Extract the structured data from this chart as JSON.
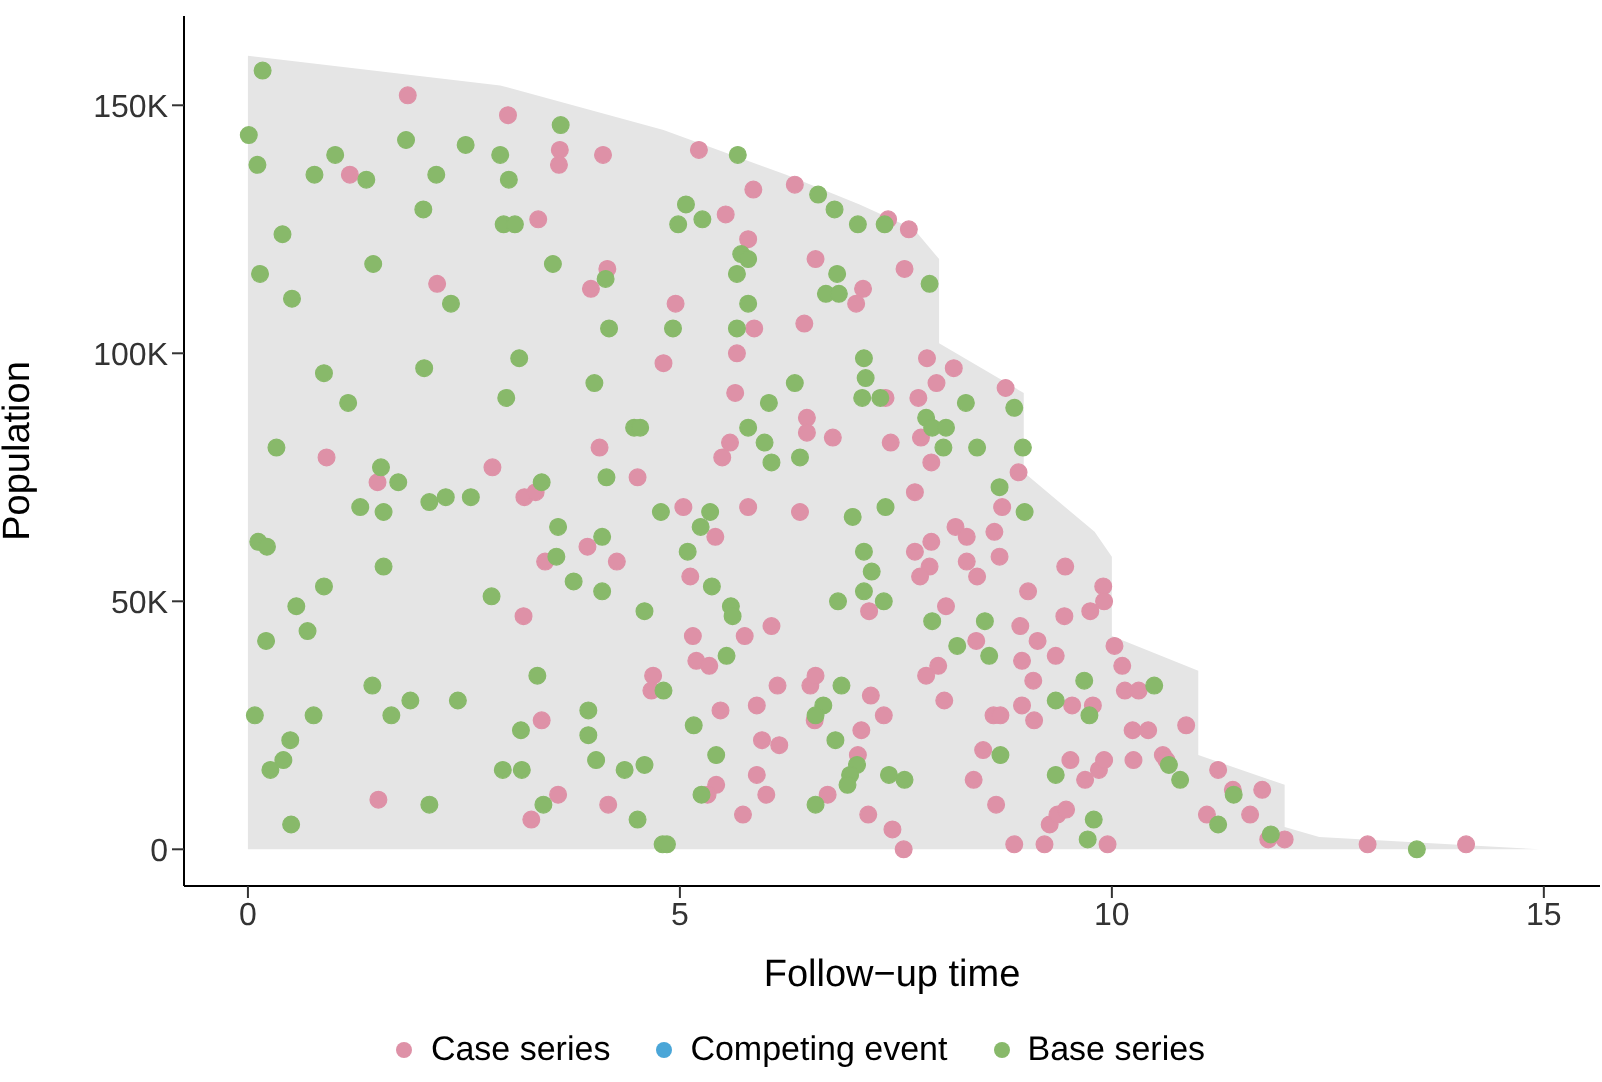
{
  "chart_data": {
    "type": "scatter",
    "xlabel": "Follow−up time",
    "ylabel": "Population",
    "xlim": [
      -0.74,
      15.65
    ],
    "ylim": [
      -7400,
      168000
    ],
    "xticks": [
      0,
      5,
      10,
      15
    ],
    "yticks": [
      0,
      {
        "value": 50000,
        "label": "50K"
      },
      {
        "value": 100000,
        "label": "100K"
      },
      {
        "value": 150000,
        "label": "150K"
      }
    ],
    "grid": false,
    "legend": "bottom",
    "marker": "circle",
    "series": [
      {
        "type": "area",
        "marker": "none",
        "color": "#e5e5e5",
        "x": [
          0,
          2.92,
          4.81,
          6.23,
          7.08,
          7.71,
          8.0,
          8.0,
          8.98,
          8.98,
          9.8,
          10.0,
          10.0,
          11.0,
          11.0,
          12.0,
          12.0,
          12.4,
          14.95
        ],
        "values": [
          160000,
          154000,
          145000,
          136000,
          130000,
          125000,
          119000,
          102000,
          92000,
          76000,
          64000,
          59000,
          43000,
          36000,
          19000,
          13000,
          4500,
          2500,
          0
        ]
      },
      {
        "name": "Case series",
        "color": "#de91a7",
        "x": [
          1.85,
          3.01,
          3.61,
          4.11,
          1.18,
          3.6,
          3.36,
          4.16,
          3.97,
          2.19,
          4.81,
          4.07,
          0.91,
          5.22,
          5.85,
          6.33,
          5.53,
          7.41,
          7.65,
          5.79,
          6.57,
          7.6,
          7.12,
          7.04,
          4.95,
          5.86,
          6.44,
          5.66,
          7.86,
          8.17,
          7.97,
          5.64,
          7.38,
          7.76,
          8.77,
          7.79,
          6.47,
          6.47,
          6.77,
          5.58,
          7.44,
          5.49,
          7.91,
          1.5,
          2.83,
          4.51,
          3.2,
          3.33,
          3.93,
          4.27,
          3.44,
          3.19,
          4.69,
          4.67,
          3.4,
          1.51,
          3.59,
          4.17,
          3.28,
          8.92,
          7.72,
          8.73,
          5.04,
          5.41,
          5.79,
          6.39,
          5.12,
          6.06,
          5.75,
          5.15,
          5.19,
          5.34,
          7.19,
          7.72,
          7.91,
          7.89,
          7.78,
          8.19,
          8.32,
          8.64,
          8.32,
          8.44,
          8.7,
          8.08,
          8.43,
          7.99,
          7.85,
          8.06,
          9.46,
          9.03,
          9.9,
          9.91,
          9.75,
          9.45,
          8.94,
          9.14,
          9.35,
          8.96,
          9.09,
          10.03,
          9.54,
          9.78,
          8.96,
          8.63,
          8.71,
          9.1,
          8.51,
          8.4,
          8.66,
          8.87,
          9.22,
          9.95,
          9.28,
          9.37,
          9.47,
          9.52,
          9.69,
          9.85,
          9.91,
          5.47,
          5.89,
          6.13,
          6.51,
          6.57,
          6.56,
          7.21,
          7.36,
          7.1,
          7.06,
          5.95,
          6.15,
          5.89,
          6.0,
          5.42,
          5.32,
          5.73,
          6.71,
          7.18,
          7.46,
          7.59,
          10.12,
          10.15,
          10.31,
          10.24,
          10.42,
          10.86,
          10.25,
          10.59,
          10.63,
          11.23,
          11.4,
          11.74,
          11.1,
          11.6,
          11.81,
          12.0,
          12.96,
          14.1
        ],
        "values": [
          152000,
          148000,
          141000,
          140000,
          136000,
          138000,
          127000,
          117000,
          113000,
          114000,
          98000,
          81000,
          79000,
          141000,
          133000,
          134000,
          128000,
          127000,
          125000,
          123000,
          119000,
          117000,
          113000,
          110000,
          110000,
          105000,
          106000,
          100000,
          99000,
          97000,
          94000,
          92000,
          91000,
          91000,
          93000,
          83000,
          87000,
          84000,
          83000,
          82000,
          82000,
          79000,
          78000,
          74000,
          77000,
          75000,
          71000,
          72000,
          61000,
          58000,
          58000,
          47000,
          35000,
          32000,
          26000,
          10000,
          11000,
          9000,
          6000,
          76000,
          72000,
          69000,
          69000,
          63000,
          69000,
          68000,
          55000,
          45000,
          43000,
          43000,
          38000,
          37000,
          48000,
          60000,
          62000,
          57000,
          55000,
          65000,
          63000,
          64000,
          58000,
          55000,
          59000,
          49000,
          42000,
          37000,
          35000,
          30000,
          57000,
          52000,
          53000,
          50000,
          48000,
          47000,
          45000,
          42000,
          39000,
          38000,
          34000,
          41000,
          29000,
          29000,
          29000,
          27000,
          27000,
          26000,
          20000,
          14000,
          9000,
          1000,
          1000,
          1000,
          5000,
          7000,
          8000,
          18000,
          14000,
          16000,
          18000,
          28000,
          29000,
          33000,
          33000,
          35000,
          26000,
          31000,
          27000,
          24000,
          19000,
          22000,
          21000,
          15000,
          11000,
          13000,
          11000,
          7000,
          11000,
          7000,
          4000,
          0,
          37000,
          32000,
          32000,
          24000,
          24000,
          25000,
          18000,
          19000,
          18000,
          16000,
          12000,
          12000,
          7000,
          7000,
          2000,
          2000,
          1000,
          1000
        ]
      },
      {
        "name": "Competing event",
        "color": "#4aa6d8"
      },
      {
        "name": "Base series",
        "color": "#88b96a",
        "x": [
          0.17,
          3.62,
          0.01,
          1.83,
          1.01,
          2.52,
          2.92,
          0.11,
          0.77,
          1.37,
          2.18,
          3.02,
          2.03,
          2.96,
          3.09,
          0.4,
          0.14,
          1.45,
          3.53,
          4.14,
          0.51,
          2.35,
          4.18,
          3.14,
          2.04,
          0.88,
          4.01,
          1.16,
          2.99,
          4.47,
          0.33,
          5.67,
          6.6,
          5.07,
          5.26,
          4.98,
          6.79,
          7.06,
          7.37,
          5.71,
          5.79,
          5.66,
          6.82,
          7.89,
          6.69,
          6.84,
          5.79,
          4.92,
          5.66,
          7.13,
          7.15,
          6.33,
          6.03,
          7.11,
          7.32,
          8.31,
          8.87,
          7.85,
          7.92,
          8.08,
          8.05,
          8.44,
          8.97,
          5.79,
          5.98,
          6.06,
          6.39,
          4.54,
          1.54,
          1.74,
          4.15,
          3.4,
          1.3,
          1.57,
          2.1,
          2.29,
          2.58,
          4.78,
          0.12,
          0.22,
          3.59,
          4.1,
          3.57,
          3.77,
          4.1,
          1.57,
          0.88,
          0.56,
          0.69,
          0.21,
          2.82,
          4.59,
          3.35,
          1.44,
          1.88,
          2.43,
          1.66,
          0.76,
          0.08,
          3.94,
          3.16,
          3.94,
          0.49,
          0.41,
          0.26,
          2.95,
          3.17,
          4.03,
          4.36,
          4.59,
          2.1,
          3.42,
          4.51,
          0.5,
          4.8,
          8.7,
          8.99,
          5.35,
          5.24,
          7.0,
          7.38,
          5.09,
          5.37,
          5.59,
          5.61,
          5.54,
          7.13,
          7.22,
          7.13,
          7.36,
          6.83,
          7.92,
          8.53,
          8.21,
          8.58,
          9.68,
          9.35,
          9.74,
          8.71,
          9.72,
          9.79,
          9.35,
          4.81,
          5.16,
          6.87,
          6.66,
          6.57,
          6.8,
          7.05,
          6.97,
          6.94,
          7.42,
          7.6,
          5.42,
          5.25,
          6.57,
          4.85,
          10.49,
          10.66,
          10.79,
          11.41,
          11.23,
          11.84,
          13.53
        ],
        "values": [
          157000,
          146000,
          144000,
          143000,
          140000,
          142000,
          140000,
          138000,
          136000,
          135000,
          136000,
          135000,
          129000,
          126000,
          126000,
          124000,
          116000,
          118000,
          118000,
          115000,
          111000,
          110000,
          105000,
          99000,
          97000,
          96000,
          94000,
          90000,
          91000,
          85000,
          81000,
          140000,
          132000,
          130000,
          127000,
          126000,
          129000,
          126000,
          126000,
          120000,
          119000,
          116000,
          116000,
          114000,
          112000,
          112000,
          110000,
          105000,
          105000,
          99000,
          95000,
          94000,
          90000,
          91000,
          91000,
          90000,
          89000,
          87000,
          85000,
          85000,
          81000,
          81000,
          81000,
          85000,
          82000,
          78000,
          79000,
          85000,
          77000,
          74000,
          75000,
          74000,
          69000,
          68000,
          70000,
          71000,
          71000,
          68000,
          62000,
          61000,
          65000,
          63000,
          59000,
          54000,
          52000,
          57000,
          53000,
          49000,
          44000,
          42000,
          51000,
          48000,
          35000,
          33000,
          30000,
          30000,
          27000,
          27000,
          27000,
          28000,
          24000,
          23000,
          22000,
          18000,
          16000,
          16000,
          16000,
          18000,
          16000,
          17000,
          9000,
          9000,
          6000,
          5000,
          1000,
          73000,
          68000,
          68000,
          65000,
          67000,
          69000,
          60000,
          53000,
          49000,
          47000,
          39000,
          60000,
          56000,
          52000,
          50000,
          50000,
          46000,
          46000,
          41000,
          39000,
          34000,
          30000,
          27000,
          19000,
          2000,
          6000,
          15000,
          32000,
          25000,
          33000,
          29000,
          27000,
          22000,
          17000,
          15000,
          13000,
          15000,
          14000,
          19000,
          11000,
          9000,
          1000,
          33000,
          17000,
          14000,
          11000,
          5000,
          3000,
          0
        ]
      }
    ]
  }
}
